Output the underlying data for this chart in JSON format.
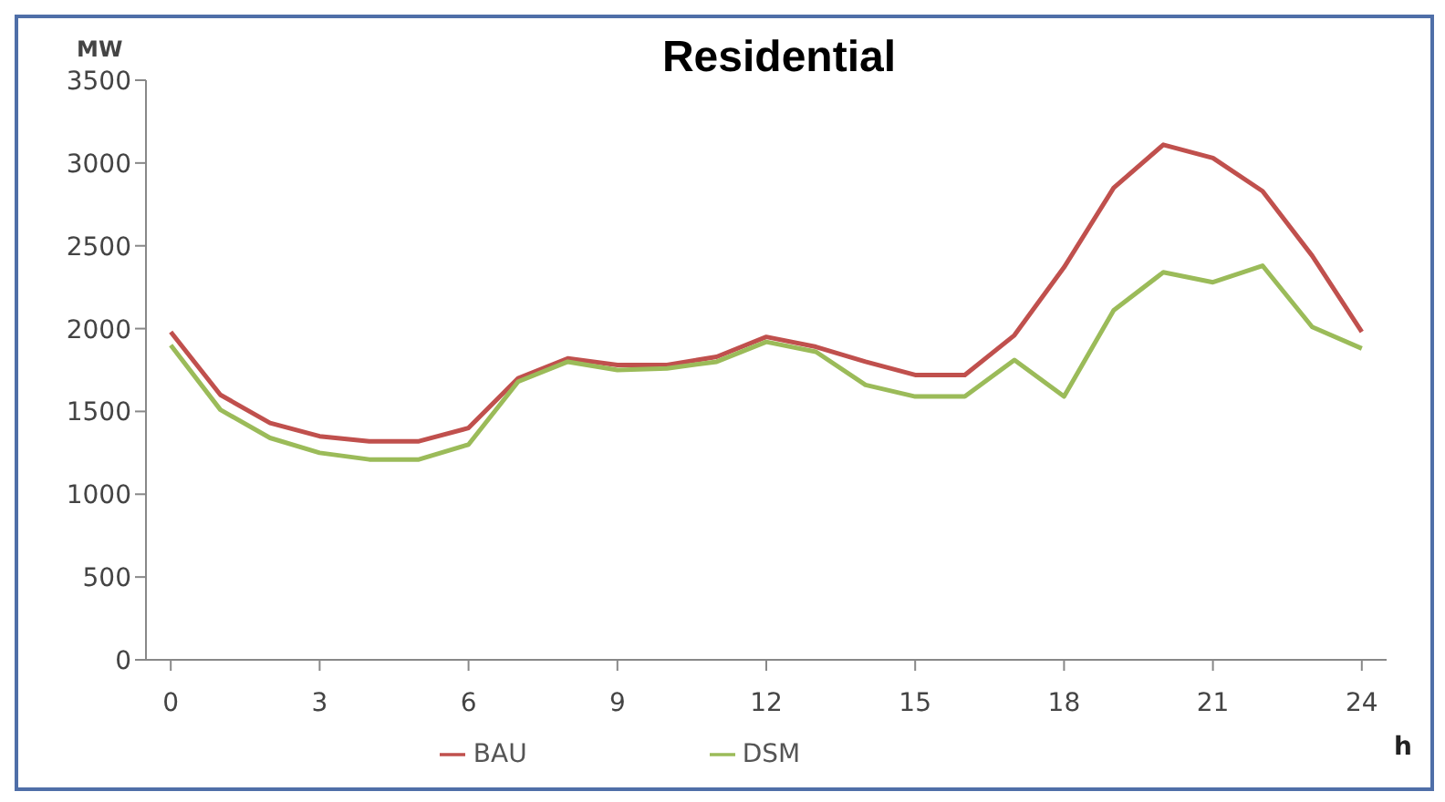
{
  "chart_data": {
    "type": "line",
    "title": "Residential",
    "ylabel": "MW",
    "xlabel": "h",
    "x": [
      0,
      1,
      2,
      3,
      4,
      5,
      6,
      7,
      8,
      9,
      10,
      11,
      12,
      13,
      14,
      15,
      16,
      17,
      18,
      19,
      20,
      21,
      22,
      23,
      24
    ],
    "series": [
      {
        "name": "BAU",
        "color": "#c0504d",
        "values": [
          1980,
          1600,
          1430,
          1350,
          1320,
          1320,
          1400,
          1700,
          1820,
          1780,
          1780,
          1830,
          1950,
          1890,
          1800,
          1720,
          1720,
          1960,
          2370,
          2850,
          3110,
          3030,
          2830,
          2440,
          1980
        ]
      },
      {
        "name": "DSM",
        "color": "#9bbb59",
        "values": [
          1900,
          1510,
          1340,
          1250,
          1210,
          1210,
          1300,
          1680,
          1800,
          1750,
          1760,
          1800,
          1920,
          1860,
          1660,
          1590,
          1590,
          1810,
          1590,
          2110,
          2340,
          2280,
          2380,
          2010,
          1880
        ]
      }
    ],
    "xlim": [
      -0.5,
      24.5
    ],
    "xticks": [
      0,
      3,
      6,
      9,
      12,
      15,
      18,
      21,
      24
    ],
    "ylim": [
      0,
      3500
    ],
    "yticks": [
      0,
      500,
      1000,
      1500,
      2000,
      2500,
      3000,
      3500
    ],
    "grid": false,
    "legend": "bottom",
    "marker": "none",
    "line_style": "solid"
  }
}
